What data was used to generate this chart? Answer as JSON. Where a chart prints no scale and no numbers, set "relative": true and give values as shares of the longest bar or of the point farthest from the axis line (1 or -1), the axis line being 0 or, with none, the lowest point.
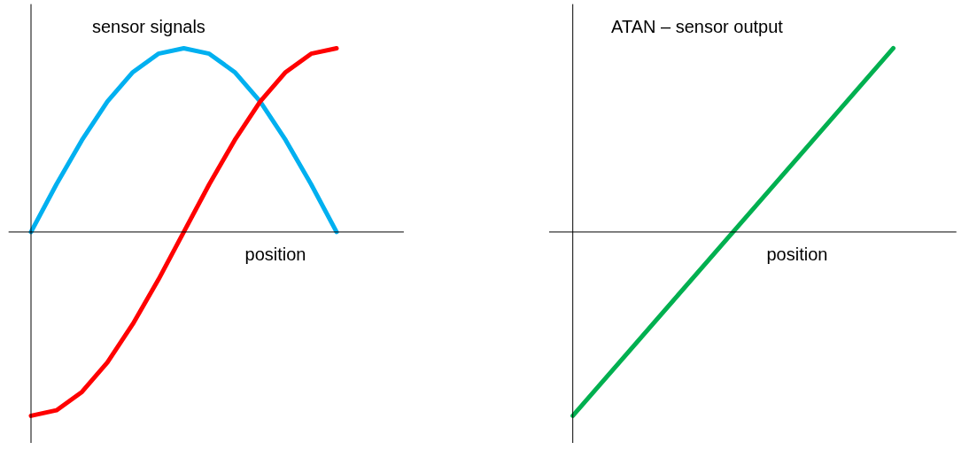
{
  "chart_data": [
    {
      "type": "line",
      "title": "sensor signals",
      "xlabel": "position",
      "relative": true,
      "categories": [
        null,
        null,
        null,
        null,
        null,
        null,
        null,
        null,
        null,
        null,
        null,
        null,
        null
      ],
      "series": [
        {
          "color": "#00b0f0",
          "values": [
            0,
            0.26,
            0.5,
            0.71,
            0.87,
            0.97,
            1,
            0.97,
            0.87,
            0.71,
            0.5,
            0.26,
            0
          ]
        },
        {
          "color": "#ff0000",
          "values": [
            -1,
            -0.97,
            -0.87,
            -0.71,
            -0.5,
            -0.26,
            0,
            0.26,
            0.5,
            0.71,
            0.87,
            0.97,
            1
          ]
        }
      ]
    },
    {
      "type": "line",
      "title": "ATAN – sensor output",
      "xlabel": "position",
      "relative": true,
      "categories": [
        null,
        null
      ],
      "series": [
        {
          "color": "#00b050",
          "values": [
            -1,
            1
          ]
        }
      ]
    }
  ]
}
